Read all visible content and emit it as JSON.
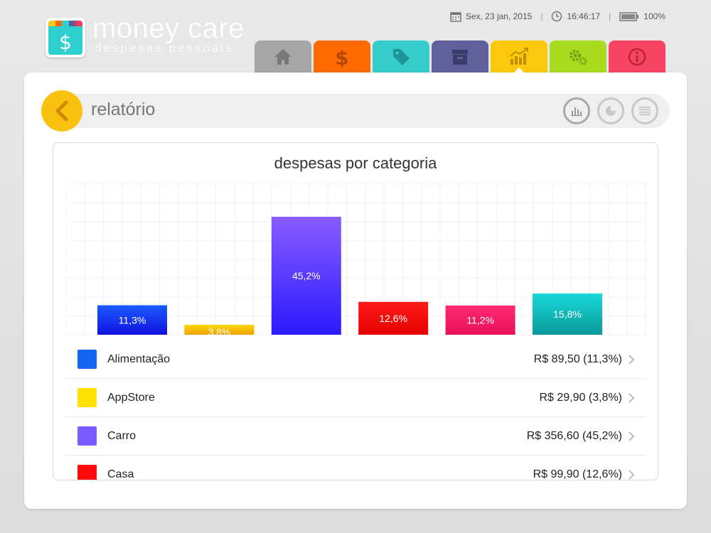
{
  "app": {
    "title": "money care",
    "subtitle": "despesas pessoais",
    "logo_symbol": "$",
    "logo_stripes": [
      "#f7c81e",
      "#ff6a00",
      "#2ecfcf",
      "#5b5b9a",
      "#f53b5c"
    ]
  },
  "status": {
    "date": "Sex, 23 jan, 2015",
    "time": "16:46:17",
    "battery": "100%"
  },
  "tabs": [
    {
      "icon": "home-icon",
      "color": "#a6a6a6"
    },
    {
      "icon": "dollar-icon",
      "color": "#ff6a00"
    },
    {
      "icon": "tag-icon",
      "color": "#37cccc"
    },
    {
      "icon": "archive-icon",
      "color": "#60609c"
    },
    {
      "icon": "chart-trend-icon",
      "color": "#fcc80d",
      "active": true
    },
    {
      "icon": "gears-icon",
      "color": "#a9dc1f"
    },
    {
      "icon": "info-icon",
      "color": "#f74463"
    }
  ],
  "page": {
    "title": "relatório"
  },
  "chart_data": {
    "type": "bar",
    "title": "despesas por categoria",
    "categories": [
      "Alimentação",
      "AppStore",
      "Carro",
      "Casa",
      "",
      ""
    ],
    "values": [
      11.3,
      3.8,
      45.2,
      12.6,
      11.2,
      15.8
    ],
    "labels": [
      "11,3%",
      "3,8%",
      "45,2%",
      "12,6%",
      "11,2%",
      "15,8%"
    ],
    "colors": [
      [
        "#1a5cff",
        "#1010e0"
      ],
      [
        "#ffd800",
        "#f0a000"
      ],
      [
        "#8a5cff",
        "#2a1aff"
      ],
      [
        "#ff1a1a",
        "#e60000"
      ],
      [
        "#ff2a70",
        "#e8105a"
      ],
      [
        "#1ad8d8",
        "#0a9a9a"
      ]
    ],
    "ylim": [
      0,
      50
    ],
    "grid": true
  },
  "legend": [
    {
      "name": "Alimentação",
      "value": "R$ 89,50 (11,3%)",
      "color": "#1565f2"
    },
    {
      "name": "AppStore",
      "value": "R$ 29,90 (3,8%)",
      "color": "#ffe000"
    },
    {
      "name": "Carro",
      "value": "R$ 356,60 (45,2%)",
      "color": "#7a5cff"
    },
    {
      "name": "Casa",
      "value": "R$ 99,90 (12,6%)",
      "color": "#ff0a0a"
    }
  ]
}
